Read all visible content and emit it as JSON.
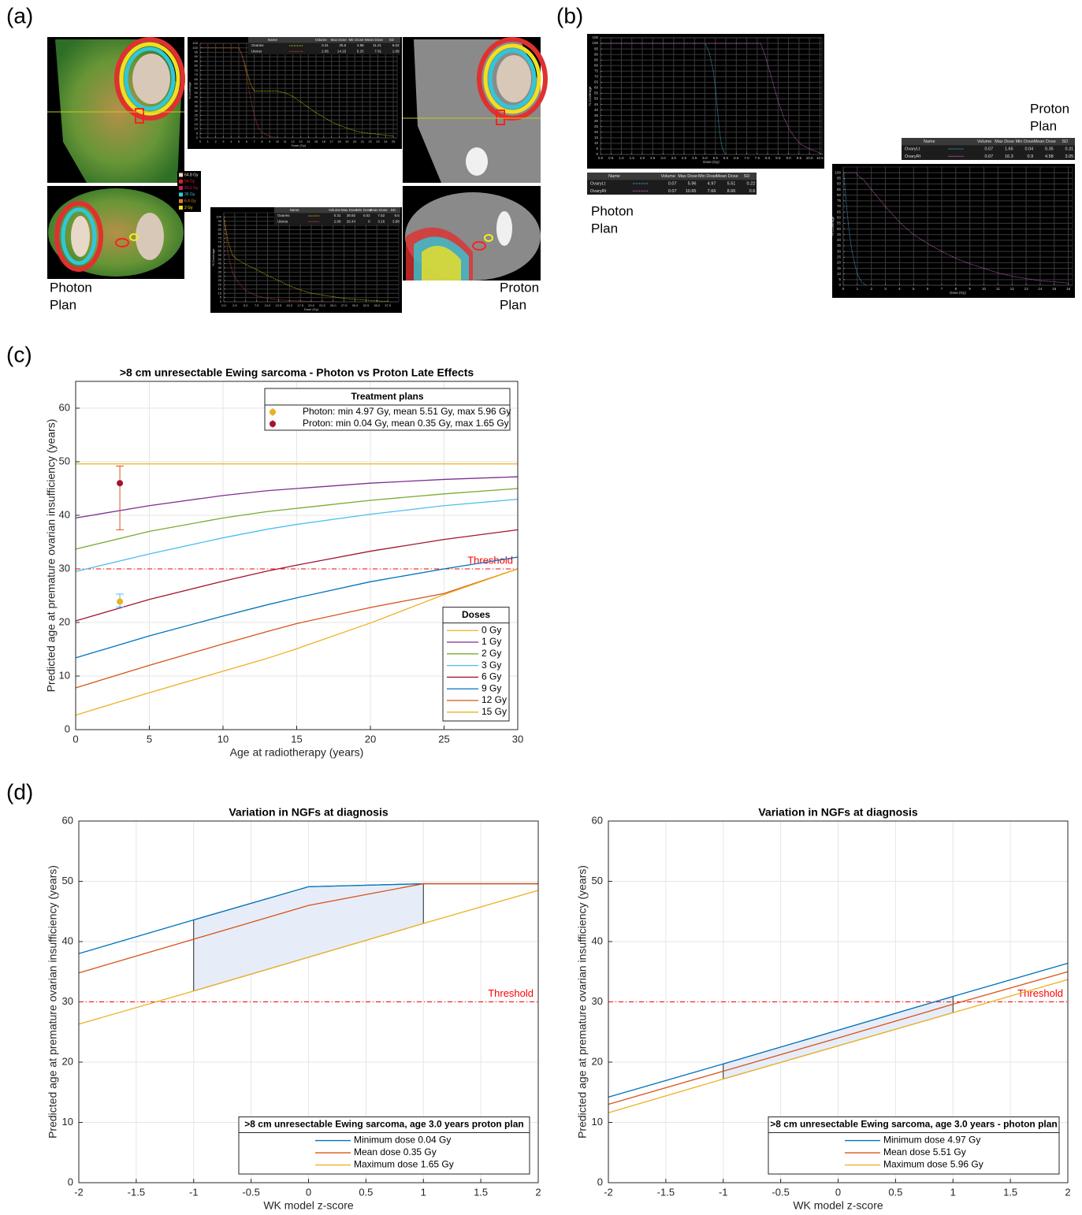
{
  "panel_labels": [
    "(a)",
    "(b)",
    "(c)",
    "(d)"
  ],
  "plan_labels": {
    "photon": [
      "Photon",
      "Plan"
    ],
    "proton": [
      "Proton",
      "Plan"
    ]
  },
  "dose_colorbar": {
    "labels": [
      "64.8 Gy",
      "54 Gy",
      "50.2 Gy",
      "36 Gy",
      "6.4 Gy",
      "2 Gy"
    ],
    "colors": [
      "#f3dcc0",
      "#e02020",
      "#c02060",
      "#30c8d8",
      "#e08020",
      "#f0e020"
    ]
  },
  "chart_data": [
    {
      "type": "line",
      "background": "#000000",
      "line_style": "dotted",
      "xlabel": "Dose (Gy)",
      "ylabel": "% Coverage",
      "xlim": [
        0,
        25.5
      ],
      "ylim": [
        0,
        105
      ],
      "grid": true,
      "xticks": [
        0,
        1,
        2,
        3,
        4,
        5,
        6,
        7,
        8,
        9,
        10,
        11,
        12,
        13,
        14,
        15,
        16,
        17,
        18,
        19,
        20,
        21,
        22,
        23,
        24,
        25
      ],
      "yticks": [
        0,
        5,
        10,
        15,
        20,
        25,
        30,
        35,
        40,
        45,
        50,
        55,
        60,
        65,
        70,
        75,
        80,
        85,
        90,
        95,
        100,
        105
      ],
      "series": [
        {
          "name": "Ovaries",
          "color": "#d8d800",
          "x": [
            0,
            5,
            5.5,
            6,
            6.5,
            7,
            10,
            11,
            12,
            13,
            14,
            15,
            16,
            17,
            18,
            19,
            20,
            21,
            22,
            23,
            24,
            25
          ],
          "values": [
            100,
            100,
            90,
            75,
            60,
            52,
            52,
            50,
            46,
            40,
            34,
            28,
            23,
            18,
            14,
            11,
            8,
            6,
            5,
            4,
            3,
            2
          ]
        },
        {
          "name": "Uterus",
          "color": "#e04040",
          "x": [
            0,
            5,
            5.5,
            6,
            6.5,
            7,
            7.5,
            8,
            9,
            10
          ],
          "values": [
            100,
            100,
            90,
            70,
            45,
            25,
            12,
            6,
            2,
            0
          ]
        }
      ],
      "table": {
        "columns": [
          "Name",
          "Volume",
          "Max Dose",
          "Min Dose",
          "Mean Dose",
          "SD"
        ],
        "rows": [
          [
            0.31,
            25.6,
            4.88,
            11.21,
            6.02
          ],
          [
            2.06,
            14.15,
            5.25,
            7.01,
            1.09
          ]
        ]
      }
    },
    {
      "type": "line",
      "background": "#000000",
      "line_style": "dotted",
      "xlabel": "Dose (Gy)",
      "ylabel": "% Coverage",
      "xlim": [
        0,
        40
      ],
      "ylim": [
        0,
        105
      ],
      "grid": true,
      "xticks": [
        {
          "value": 0,
          "label": "0.0"
        },
        2.5,
        {
          "value": 5,
          "label": "5.0"
        },
        7.5,
        {
          "value": 10,
          "label": "10.0"
        },
        12.5,
        {
          "value": 15,
          "label": "15.0"
        },
        17.5,
        {
          "value": 20,
          "label": "20.0"
        },
        22.5,
        {
          "value": 25,
          "label": "25.0"
        },
        27.5,
        {
          "value": 30,
          "label": "30.0"
        },
        32.5,
        {
          "value": 35,
          "label": "35.0"
        },
        37.5
      ],
      "yticks": [
        0,
        5,
        10,
        15,
        20,
        25,
        30,
        35,
        40,
        45,
        50,
        55,
        60,
        65,
        70,
        75,
        80,
        85,
        90,
        95,
        100
      ],
      "series": [
        {
          "name": "Ovaries",
          "color": "#d8d800",
          "x": [
            0,
            1,
            2,
            3,
            5,
            7.5,
            10,
            12.5,
            15,
            17.5,
            20,
            22.5,
            25,
            27.5,
            30,
            32.5,
            35,
            37.5
          ],
          "values": [
            100,
            70,
            55,
            50,
            44,
            38,
            31,
            25,
            19,
            14,
            10,
            8,
            6,
            4,
            3,
            2,
            1,
            0.5
          ]
        },
        {
          "name": "Uterus",
          "color": "#e04040",
          "x": [
            0,
            1,
            2,
            3,
            5,
            7.5,
            10,
            12.5,
            15,
            20,
            25
          ],
          "values": [
            100,
            55,
            35,
            25,
            13,
            7,
            4,
            2.5,
            1.5,
            0.5,
            0
          ]
        }
      ],
      "table": {
        "columns": [
          "Name",
          "Volume",
          "Max Dose",
          "Min Dose",
          "Mean Dose",
          "SD"
        ],
        "rows": [
          [
            0.31,
            38.92,
            0.02,
            7.52,
            9.5
          ],
          [
            2.06,
            26.43,
            0,
            3.16,
            3.98
          ]
        ]
      }
    },
    {
      "type": "line",
      "background": "#000000",
      "line_style": "dotted",
      "xlabel": "Dose (Gy)",
      "ylabel": "% Coverage",
      "xlim": [
        0,
        10.6
      ],
      "ylim": [
        0,
        105
      ],
      "grid": true,
      "xticks": [
        {
          "value": 0,
          "label": "0.0"
        },
        0.5,
        {
          "value": 1,
          "label": "1.0"
        },
        1.5,
        {
          "value": 2,
          "label": "2.0"
        },
        2.5,
        {
          "value": 3,
          "label": "3.0"
        },
        3.5,
        {
          "value": 4,
          "label": "4.0"
        },
        4.5,
        {
          "value": 5,
          "label": "5.0"
        },
        5.5,
        {
          "value": 6,
          "label": "6.0"
        },
        6.5,
        {
          "value": 7,
          "label": "7.0"
        },
        7.5,
        {
          "value": 8,
          "label": "8.0"
        },
        8.5,
        {
          "value": 9,
          "label": "9.0"
        },
        9.5,
        {
          "value": 10,
          "label": "10.0"
        },
        10.5
      ],
      "yticks": [
        0,
        5,
        10,
        15,
        20,
        25,
        30,
        35,
        40,
        45,
        50,
        55,
        60,
        65,
        70,
        75,
        80,
        85,
        90,
        95,
        100,
        105
      ],
      "series": [
        {
          "name": "OvaryLt",
          "color": "#40c8e8",
          "x": [
            0,
            5,
            5.2,
            5.4,
            5.5,
            5.6,
            5.7,
            5.8,
            5.96
          ],
          "values": [
            100,
            100,
            92,
            75,
            60,
            40,
            20,
            8,
            0
          ]
        },
        {
          "name": "OvaryRt",
          "color": "#e070e0",
          "x": [
            0,
            7.66,
            7.9,
            8.2,
            8.5,
            8.8,
            9,
            9.3,
            9.6,
            10,
            10.4,
            10.65
          ],
          "values": [
            100,
            100,
            88,
            68,
            48,
            32,
            24,
            15,
            9,
            5,
            2,
            0
          ]
        }
      ],
      "table": {
        "columns": [
          "Name",
          "Volume",
          "Max Dose",
          "Min Dose",
          "Mean Dose",
          "SD"
        ],
        "rows": [
          [
            0.07,
            5.96,
            4.97,
            5.51,
            0.22
          ],
          [
            0.07,
            10.65,
            7.66,
            8.66,
            0.6
          ]
        ]
      }
    },
    {
      "type": "line",
      "background": "#000000",
      "line_style": "dotted",
      "xlabel": "Dose (Gy)",
      "ylabel": "% Coverage",
      "xlim": [
        0,
        16.3
      ],
      "ylim": [
        0,
        105
      ],
      "grid": true,
      "xticks": [
        0,
        1,
        2,
        3,
        4,
        5,
        6,
        7,
        8,
        9,
        10,
        11,
        12,
        13,
        14,
        15,
        16
      ],
      "yticks": [
        0,
        5,
        10,
        15,
        20,
        25,
        30,
        35,
        40,
        45,
        50,
        55,
        60,
        65,
        70,
        75,
        80,
        85,
        90,
        95,
        100
      ],
      "series": [
        {
          "name": "OvaryLt",
          "color": "#40c8e8",
          "x": [
            0,
            0.04,
            0.2,
            0.4,
            0.6,
            0.8,
            1.0,
            1.3,
            1.65
          ],
          "values": [
            100,
            100,
            75,
            50,
            32,
            20,
            10,
            3,
            0
          ]
        },
        {
          "name": "OvaryRt",
          "color": "#e070e0",
          "x": [
            0,
            0.9,
            1,
            1.5,
            2,
            3,
            4,
            5,
            6,
            7,
            8,
            9,
            10,
            11,
            12,
            13,
            14,
            15,
            16
          ],
          "values": [
            100,
            100,
            98,
            93,
            85,
            70,
            56,
            45,
            37,
            30,
            24,
            19,
            15,
            11,
            8,
            6,
            4,
            3,
            2
          ]
        }
      ],
      "table": {
        "columns": [
          "Name",
          "Volume",
          "Max Dose",
          "Min Dose",
          "Mean Dose",
          "SD"
        ],
        "rows": [
          [
            0.07,
            1.65,
            0.04,
            0.35,
            0.31
          ],
          [
            0.07,
            16.3,
            0.9,
            4.58,
            3.05
          ]
        ]
      }
    },
    {
      "type": "line",
      "title": ">8 cm unresectable Ewing sarcoma - Photon vs Proton Late Effects",
      "xlabel": "Age at radiotherapy (years)",
      "ylabel": "Predicted age at premature ovarian insufficiency (years)",
      "xlim": [
        0,
        30
      ],
      "ylim": [
        0,
        65
      ],
      "xticks": [
        0,
        5,
        10,
        15,
        20,
        25,
        30
      ],
      "yticks": [
        0,
        10,
        20,
        30,
        40,
        50,
        60
      ],
      "grid": true,
      "x": [
        0,
        5,
        10,
        13,
        15,
        20,
        25,
        30
      ],
      "series": [
        {
          "name": "0 Gy",
          "color": "#EDB120",
          "values": [
            49.6,
            49.6,
            49.6,
            49.6,
            49.6,
            49.6,
            49.6,
            49.6
          ]
        },
        {
          "name": "1 Gy",
          "color": "#7E2F8E",
          "values": [
            39.5,
            41.8,
            43.7,
            44.6,
            45.0,
            46.0,
            46.7,
            47.2
          ]
        },
        {
          "name": "2 Gy",
          "color": "#77AC30",
          "values": [
            33.7,
            37.0,
            39.5,
            40.7,
            41.3,
            42.8,
            44.0,
            45.0
          ]
        },
        {
          "name": "3 Gy",
          "color": "#4DBEEE",
          "values": [
            29.5,
            32.8,
            35.8,
            37.4,
            38.3,
            40.2,
            41.8,
            43.0
          ]
        },
        {
          "name": "6 Gy",
          "color": "#A2142F",
          "values": [
            20.3,
            24.3,
            27.7,
            29.6,
            30.7,
            33.3,
            35.5,
            37.3
          ]
        },
        {
          "name": "9 Gy",
          "color": "#0072BD",
          "values": [
            13.4,
            17.5,
            21.2,
            23.3,
            24.6,
            27.6,
            30.0,
            32.2
          ]
        },
        {
          "name": "12 Gy",
          "color": "#D95319",
          "values": [
            7.8,
            12.0,
            16.0,
            18.3,
            19.8,
            22.8,
            25.4,
            30.0
          ]
        },
        {
          "name": "15 Gy",
          "color": "#EDB120",
          "values": [
            2.7,
            6.9,
            10.9,
            13.3,
            15.1,
            19.9,
            25.2,
            30.0
          ]
        }
      ],
      "legend_title": "Doses",
      "legend_position": "lower right",
      "threshold": {
        "value": 30,
        "label": "Threshold",
        "color": "#ff0000"
      },
      "points_legend_title": "Treatment plans",
      "points_legend_position": "upper right",
      "points": [
        {
          "name": "Photon: min 4.97 Gy, mean 5.51 Gy, max 5.96 Gy",
          "x": 3,
          "y": 23.9,
          "ylow": 22.9,
          "yhigh": 25.3,
          "color": "#EDB120",
          "error_color": "#4DBEEE"
        },
        {
          "name": "Proton: min 0.04 Gy, mean 0.35 Gy, max 1.65 Gy",
          "x": 3,
          "y": 46.0,
          "ylow": 37.3,
          "yhigh": 49.2,
          "color": "#A2142F",
          "error_color": "#D95319"
        }
      ]
    },
    {
      "type": "line",
      "title": "Variation in NGFs at diagnosis",
      "xlabel": "WK model z-score",
      "ylabel": "Predicted age at premature ovarian insufficiency (years)",
      "xlim": [
        -2,
        2
      ],
      "ylim": [
        0,
        60
      ],
      "xticks": [
        -2,
        -1.5,
        -1,
        -0.5,
        0,
        0.5,
        1,
        1.5,
        2
      ],
      "yticks": [
        0,
        10,
        20,
        30,
        40,
        50,
        60
      ],
      "grid": true,
      "x": [
        -2,
        -1,
        0,
        1,
        2
      ],
      "series": [
        {
          "name": "Minimum dose 0.04 Gy",
          "color": "#0072BD",
          "values": [
            38.0,
            43.6,
            49.1,
            49.6,
            49.6
          ]
        },
        {
          "name": "Mean dose 0.35 Gy",
          "color": "#D95319",
          "values": [
            34.8,
            40.4,
            46.0,
            49.6,
            49.6
          ]
        },
        {
          "name": "Maximum dose 1.65 Gy",
          "color": "#EDB120",
          "values": [
            26.3,
            31.8,
            37.4,
            43.0,
            48.5
          ]
        }
      ],
      "legend_title": ">8 cm unresectable Ewing sarcoma, age 3.0 years proton plan",
      "legend_position": "lower right",
      "threshold": {
        "value": 30,
        "label": "Threshold",
        "color": "#ff0000"
      },
      "shaded_range": [
        -1,
        1
      ],
      "shade_color": "#e6edf8"
    },
    {
      "type": "line",
      "title": "Variation in NGFs at diagnosis",
      "xlabel": "WK model z-score",
      "ylabel": "Predicted age at premature ovarian insufficiency (years)",
      "xlim": [
        -2,
        2
      ],
      "ylim": [
        0,
        60
      ],
      "xticks": [
        -2,
        -1.5,
        -1,
        -0.5,
        0,
        0.5,
        1,
        1.5,
        2
      ],
      "yticks": [
        0,
        10,
        20,
        30,
        40,
        50,
        60
      ],
      "grid": true,
      "x": [
        -2,
        -1,
        0,
        1,
        2
      ],
      "series": [
        {
          "name": "Minimum dose 4.97 Gy",
          "color": "#0072BD",
          "values": [
            14.2,
            19.7,
            25.3,
            30.9,
            36.4
          ]
        },
        {
          "name": "Mean dose 5.51 Gy",
          "color": "#D95319",
          "values": [
            13.0,
            18.5,
            24.0,
            29.6,
            35.0
          ]
        },
        {
          "name": "Maximum dose 5.96 Gy",
          "color": "#EDB120",
          "values": [
            11.6,
            17.2,
            22.7,
            28.2,
            33.7
          ]
        }
      ],
      "legend_title": ">8 cm unresectable Ewing sarcoma, age 3.0 years - photon plan",
      "legend_position": "lower right",
      "threshold": {
        "value": 30,
        "label": "Threshold",
        "color": "#ff0000"
      },
      "shaded_range": [
        -1,
        1
      ],
      "shade_color": "#e6edf8"
    }
  ]
}
